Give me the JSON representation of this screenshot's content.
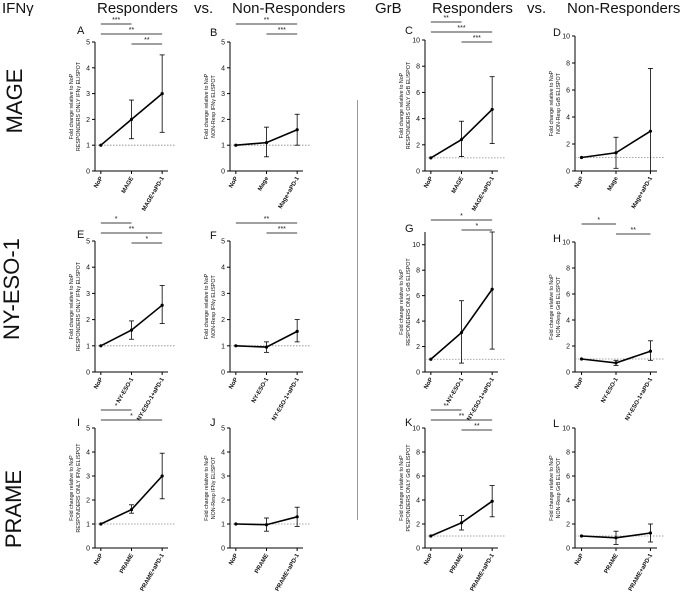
{
  "headers": {
    "ifn": "IFNγ",
    "ifn_responders": "Responders",
    "ifn_vs": "vs.",
    "ifn_nonresponders": "Non-Responders",
    "grb": "GrB",
    "grb_responders": "Responders",
    "grb_vs": "vs.",
    "grb_nonresponders": "Non-Responders"
  },
  "row_labels": [
    "MAGE",
    "NY-ESO-1",
    "PRAME"
  ],
  "colors": {
    "line": "#000000",
    "reference": "#888888",
    "divider": "#9a9a9a"
  },
  "chart_data": [
    {
      "id": "A",
      "type": "line",
      "ylabel": [
        "Fold change relative to NoP",
        "RESPONDERS ONLY IFNγ ELISPOT"
      ],
      "ylim": [
        0,
        5
      ],
      "yticks": [
        0,
        1,
        2,
        3,
        4,
        5
      ],
      "categories": [
        "NoP",
        "MAGE",
        "MAGE+aPD-1"
      ],
      "values": [
        1,
        2.0,
        3.0
      ],
      "err_low": [
        1,
        1.25,
        1.5
      ],
      "err_high": [
        1,
        2.75,
        4.5
      ],
      "reference": 1,
      "significance": [
        {
          "from": 0,
          "to": 1,
          "label": "***"
        },
        {
          "from": 0,
          "to": 2,
          "label": "**"
        },
        {
          "from": 1,
          "to": 2,
          "label": "**"
        }
      ]
    },
    {
      "id": "B",
      "type": "line",
      "ylabel": [
        "Fold change relative to NoP",
        "NON-Resp IFNγ ELISPOT"
      ],
      "ylim": [
        0,
        5
      ],
      "yticks": [
        0,
        1,
        2,
        3,
        4,
        5
      ],
      "categories": [
        "NoP",
        "Mage",
        "Mage+aPD-1"
      ],
      "values": [
        1,
        1.1,
        1.6
      ],
      "err_low": [
        1,
        0.55,
        1.0
      ],
      "err_high": [
        1,
        1.7,
        2.2
      ],
      "reference": 1,
      "significance": [
        {
          "from": 0,
          "to": 2,
          "label": "**"
        },
        {
          "from": 1,
          "to": 2,
          "label": "***"
        }
      ]
    },
    {
      "id": "C",
      "type": "line",
      "ylabel": [
        "Fold change relative to NoP",
        "RESPONDERS ONLY GrB ELISPOT"
      ],
      "ylim": [
        0,
        10
      ],
      "yticks": [
        0,
        2,
        4,
        6,
        8,
        10
      ],
      "categories": [
        "NoP",
        "MAGE",
        "MAGE+aPD-1"
      ],
      "values": [
        1,
        2.4,
        4.7
      ],
      "err_low": [
        1,
        1.1,
        2.1
      ],
      "err_high": [
        1,
        3.8,
        7.2
      ],
      "reference": 1,
      "significance": [
        {
          "from": 0,
          "to": 1,
          "label": "**"
        },
        {
          "from": 0,
          "to": 2,
          "label": "***"
        },
        {
          "from": 1,
          "to": 2,
          "label": "***"
        }
      ]
    },
    {
      "id": "D",
      "type": "line",
      "ylabel": [
        "Fold change relative to NoP",
        "NON-Resp GrB ELISPOT"
      ],
      "ylim": [
        0,
        10
      ],
      "yticks": [
        0,
        2,
        4,
        6,
        8,
        10
      ],
      "categories": [
        "NoP",
        "Mage",
        "Mage+aPD-1"
      ],
      "values": [
        1,
        1.35,
        2.95
      ],
      "err_low": [
        1,
        0.2,
        0.0
      ],
      "err_high": [
        1,
        2.5,
        7.6
      ],
      "reference": 1,
      "significance": []
    },
    {
      "id": "E",
      "type": "line",
      "ylabel": [
        "Fold change relative to NoP",
        "RESPONDERS ONLY IFNγ ELISPOT"
      ],
      "ylim": [
        0,
        5
      ],
      "yticks": [
        0,
        1,
        2,
        3,
        4,
        5
      ],
      "categories": [
        "NoP",
        "NY-ESO-1",
        "NY-ESO-1+aPD-1"
      ],
      "values": [
        1,
        1.6,
        2.55
      ],
      "err_low": [
        1,
        1.25,
        1.85
      ],
      "err_high": [
        1,
        1.95,
        3.3
      ],
      "reference": 1,
      "significance": [
        {
          "from": 0,
          "to": 1,
          "label": "*"
        },
        {
          "from": 0,
          "to": 2,
          "label": "**"
        },
        {
          "from": 1,
          "to": 2,
          "label": "*"
        }
      ]
    },
    {
      "id": "F",
      "type": "line",
      "ylabel": [
        "Fold change relative to NoP",
        "NON-Resp IFNγ ELISPOT"
      ],
      "ylim": [
        0,
        5
      ],
      "yticks": [
        0,
        1,
        2,
        3,
        4,
        5
      ],
      "categories": [
        "NoP",
        "NY-ESO-1",
        "NY-ESO-1+aPD-1"
      ],
      "values": [
        1,
        0.95,
        1.55
      ],
      "err_low": [
        1,
        0.75,
        1.15
      ],
      "err_high": [
        1,
        1.15,
        2.0
      ],
      "reference": 1,
      "significance": [
        {
          "from": 0,
          "to": 2,
          "label": "**"
        },
        {
          "from": 1,
          "to": 2,
          "label": "***"
        }
      ]
    },
    {
      "id": "G",
      "type": "line",
      "ylabel": [
        "Fold change relative to NoP",
        "RESPONDERS ONLY GrB ELISPOT"
      ],
      "ylim": [
        0,
        11
      ],
      "yticks": [
        0,
        2,
        4,
        6,
        8,
        10
      ],
      "categories": [
        "NoP",
        "NY-ESO-1",
        "NY-ESO-1+aPD-1"
      ],
      "values": [
        1,
        3.1,
        6.5
      ],
      "err_low": [
        1,
        0.7,
        1.8
      ],
      "err_high": [
        1,
        5.6,
        11.2
      ],
      "reference": 1,
      "significance": [
        {
          "from": 0,
          "to": 2,
          "label": "*"
        },
        {
          "from": 1,
          "to": 2,
          "label": "*"
        }
      ]
    },
    {
      "id": "H",
      "type": "line",
      "ylabel": [
        "Fold change relative to NoP",
        "NON-Resp GrB ELISPOT"
      ],
      "ylim": [
        0,
        10
      ],
      "yticks": [
        0,
        2,
        4,
        6,
        8,
        10
      ],
      "categories": [
        "NoP",
        "NY-ESO-1",
        "NY-ESO-1+aPD-1"
      ],
      "values": [
        1,
        0.7,
        1.6
      ],
      "err_low": [
        1,
        0.5,
        0.9
      ],
      "err_high": [
        1,
        0.9,
        2.4
      ],
      "reference": 1,
      "significance": [
        {
          "from": 0,
          "to": 1,
          "label": "*"
        },
        {
          "from": 1,
          "to": 2,
          "label": "**"
        }
      ]
    },
    {
      "id": "I",
      "type": "line",
      "ylabel": [
        "Fold change relative to NoP",
        "RESPONDERS ONLY IFNγ ELISPOT"
      ],
      "ylim": [
        0,
        5
      ],
      "yticks": [
        0,
        1,
        2,
        3,
        4,
        5
      ],
      "categories": [
        "NoP",
        "PRAME",
        "PRAME+aPD-1"
      ],
      "values": [
        1,
        1.6,
        3.0
      ],
      "err_low": [
        1,
        1.45,
        2.05
      ],
      "err_high": [
        1,
        1.8,
        3.95
      ],
      "reference": 1,
      "significance": [
        {
          "from": 0,
          "to": 1,
          "label": "*"
        },
        {
          "from": 0,
          "to": 2,
          "label": "*"
        }
      ]
    },
    {
      "id": "J",
      "type": "line",
      "ylabel": [
        "Fold change relative to NoP",
        "NON-Resp IFNγ ELISPOT"
      ],
      "ylim": [
        0,
        5
      ],
      "yticks": [
        0,
        1,
        2,
        3,
        4,
        5
      ],
      "categories": [
        "NoP",
        "PRAME",
        "PRAME+aPD-1"
      ],
      "values": [
        1,
        0.97,
        1.3
      ],
      "err_low": [
        1,
        0.7,
        0.9
      ],
      "err_high": [
        1,
        1.25,
        1.7
      ],
      "reference": 1,
      "significance": []
    },
    {
      "id": "K",
      "type": "line",
      "ylabel": [
        "Fold change relative to NoP",
        "PESPONDERS ONLY GrB ELISPOT"
      ],
      "ylim": [
        0,
        10
      ],
      "yticks": [
        0,
        2,
        4,
        6,
        8,
        10
      ],
      "categories": [
        "NoP",
        "PRAME",
        "PRAME+aPD-1"
      ],
      "values": [
        1,
        2.1,
        3.9
      ],
      "err_low": [
        1,
        1.5,
        2.6
      ],
      "err_high": [
        1,
        2.7,
        5.2
      ],
      "reference": 1,
      "significance": [
        {
          "from": 0,
          "to": 1,
          "label": "**"
        },
        {
          "from": 0,
          "to": 2,
          "label": "**"
        },
        {
          "from": 1,
          "to": 2,
          "label": "**"
        }
      ]
    },
    {
      "id": "L",
      "type": "line",
      "ylabel": [
        "Fold change relative to NoP",
        "NON-Resp GrB ELISPOT"
      ],
      "ylim": [
        0,
        10
      ],
      "yticks": [
        0,
        2,
        4,
        6,
        8,
        10
      ],
      "categories": [
        "NoP",
        "PRAME",
        "PRAME+aPD-1"
      ],
      "values": [
        1,
        0.85,
        1.25
      ],
      "err_low": [
        1,
        0.3,
        0.5
      ],
      "err_high": [
        1,
        1.4,
        2.0
      ],
      "reference": 1,
      "significance": []
    }
  ]
}
